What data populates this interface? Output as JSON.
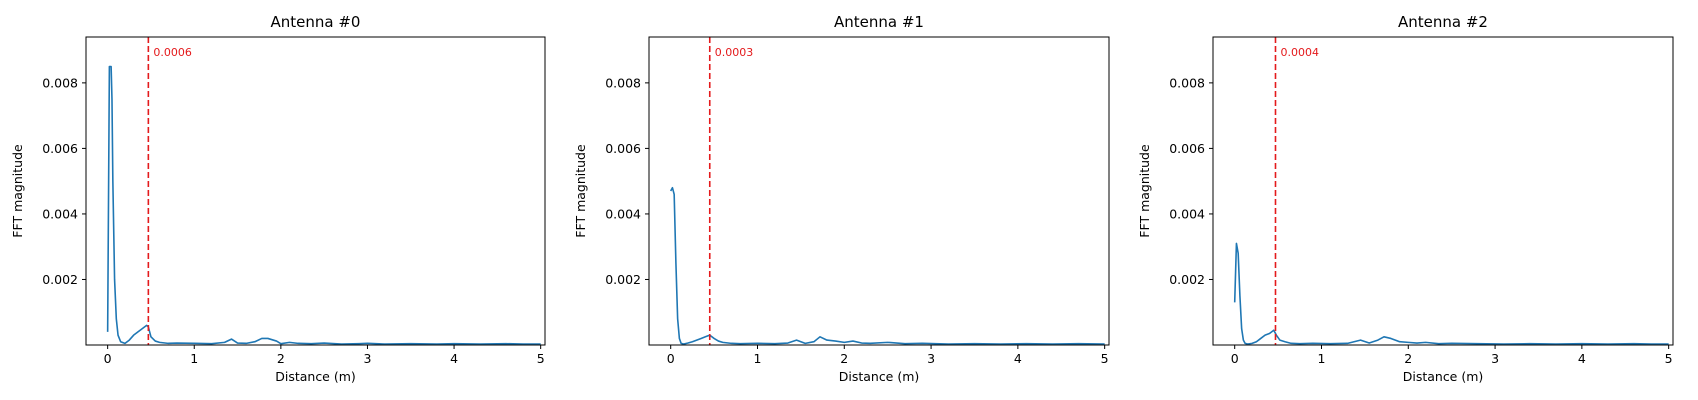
{
  "chart_data": [
    {
      "type": "line",
      "title": "Antenna #0",
      "xlabel": "Distance (m)",
      "ylabel": "FFT magnitude",
      "xlim": [
        -0.25,
        5.05
      ],
      "ylim": [
        0,
        0.0094
      ],
      "xticks": [
        0,
        1,
        2,
        3,
        4,
        5
      ],
      "xtick_labels": [
        "0",
        "1",
        "2",
        "3",
        "4",
        "5"
      ],
      "yticks": [
        0.002,
        0.004,
        0.006,
        0.008
      ],
      "ytick_labels": [
        "0.002",
        "0.004",
        "0.006",
        "0.008"
      ],
      "line_color": "#1f77b4",
      "series": [
        {
          "x": [
            0,
            0.02,
            0.04,
            0.05,
            0.06,
            0.08,
            0.1,
            0.12,
            0.15,
            0.2,
            0.25,
            0.3,
            0.35,
            0.4,
            0.45,
            0.47,
            0.5,
            0.55,
            0.6,
            0.7,
            0.8,
            1.0,
            1.2,
            1.35,
            1.43,
            1.5,
            1.6,
            1.7,
            1.78,
            1.85,
            1.95,
            2.0,
            2.1,
            2.2,
            2.35,
            2.5,
            2.7,
            2.9,
            3.0,
            3.2,
            3.5,
            3.8,
            4.0,
            4.3,
            4.6,
            4.8,
            5.0
          ],
          "y": [
            0.0004,
            0.0085,
            0.0085,
            0.0075,
            0.005,
            0.002,
            0.0008,
            0.0003,
            0.0001,
            5e-05,
            0.00015,
            0.0003,
            0.0004,
            0.0005,
            0.0006,
            0.00055,
            0.00025,
            0.00012,
            8e-05,
            5e-05,
            6e-05,
            5e-05,
            4e-05,
            8e-05,
            0.00018,
            6e-05,
            5e-05,
            0.0001,
            0.0002,
            0.0002,
            0.00012,
            4e-05,
            8e-05,
            5e-05,
            4e-05,
            6e-05,
            3e-05,
            4e-05,
            5e-05,
            3e-05,
            4e-05,
            3e-05,
            4e-05,
            3e-05,
            4e-05,
            3e-05,
            3e-05
          ]
        }
      ],
      "vline": {
        "x": 0.47,
        "color": "#e41a1c",
        "style": "dashed"
      },
      "annotation": {
        "text": "0.0006",
        "color": "#e41a1c"
      }
    },
    {
      "type": "line",
      "title": "Antenna #1",
      "xlabel": "Distance (m)",
      "ylabel": "FFT magnitude",
      "xlim": [
        -0.25,
        5.05
      ],
      "ylim": [
        0,
        0.0094
      ],
      "xticks": [
        0,
        1,
        2,
        3,
        4,
        5
      ],
      "xtick_labels": [
        "0",
        "1",
        "2",
        "3",
        "4",
        "5"
      ],
      "yticks": [
        0.002,
        0.004,
        0.006,
        0.008
      ],
      "ytick_labels": [
        "0.002",
        "0.004",
        "0.006",
        "0.008"
      ],
      "line_color": "#1f77b4",
      "series": [
        {
          "x": [
            0,
            0.02,
            0.04,
            0.06,
            0.08,
            0.1,
            0.12,
            0.15,
            0.2,
            0.25,
            0.3,
            0.35,
            0.4,
            0.45,
            0.5,
            0.55,
            0.6,
            0.7,
            0.8,
            1.0,
            1.2,
            1.35,
            1.45,
            1.55,
            1.65,
            1.72,
            1.8,
            1.9,
            2.0,
            2.1,
            2.2,
            2.3,
            2.5,
            2.7,
            2.9,
            3.2,
            3.5,
            3.8,
            4.1,
            4.4,
            4.7,
            5.0
          ],
          "y": [
            0.0047,
            0.0048,
            0.0046,
            0.0025,
            0.0008,
            0.0002,
            5e-05,
            3e-05,
            6e-05,
            0.0001,
            0.00015,
            0.0002,
            0.00025,
            0.0003,
            0.0002,
            0.00012,
            8e-05,
            5e-05,
            4e-05,
            5e-05,
            4e-05,
            6e-05,
            0.00015,
            5e-05,
            0.0001,
            0.00025,
            0.00015,
            0.00012,
            8e-05,
            0.00012,
            6e-05,
            5e-05,
            8e-05,
            4e-05,
            5e-05,
            3e-05,
            4e-05,
            3e-05,
            4e-05,
            3e-05,
            4e-05,
            3e-05
          ]
        }
      ],
      "vline": {
        "x": 0.45,
        "color": "#e41a1c",
        "style": "dashed"
      },
      "annotation": {
        "text": "0.0003",
        "color": "#e41a1c"
      }
    },
    {
      "type": "line",
      "title": "Antenna #2",
      "xlabel": "Distance (m)",
      "ylabel": "FFT magnitude",
      "xlim": [
        -0.25,
        5.05
      ],
      "ylim": [
        0,
        0.0094
      ],
      "xticks": [
        0,
        1,
        2,
        3,
        4,
        5
      ],
      "xtick_labels": [
        "0",
        "1",
        "2",
        "3",
        "4",
        "5"
      ],
      "yticks": [
        0.002,
        0.004,
        0.006,
        0.008
      ],
      "ytick_labels": [
        "0.002",
        "0.004",
        "0.006",
        "0.008"
      ],
      "line_color": "#1f77b4",
      "series": [
        {
          "x": [
            0,
            0.02,
            0.04,
            0.06,
            0.08,
            0.1,
            0.12,
            0.15,
            0.2,
            0.25,
            0.3,
            0.35,
            0.4,
            0.45,
            0.48,
            0.52,
            0.58,
            0.65,
            0.75,
            0.9,
            1.1,
            1.3,
            1.45,
            1.55,
            1.65,
            1.72,
            1.8,
            1.9,
            2.0,
            2.1,
            2.2,
            2.35,
            2.5,
            2.8,
            3.1,
            3.4,
            3.7,
            4.0,
            4.3,
            4.6,
            4.8,
            5.0
          ],
          "y": [
            0.0013,
            0.0031,
            0.0028,
            0.0015,
            0.0005,
            0.00015,
            5e-05,
            3e-05,
            5e-05,
            0.0001,
            0.0002,
            0.0003,
            0.00035,
            0.00045,
            0.0003,
            0.00015,
            0.0001,
            5e-05,
            4e-05,
            5e-05,
            4e-05,
            5e-05,
            0.00015,
            6e-05,
            0.00015,
            0.00025,
            0.0002,
            0.0001,
            8e-05,
            6e-05,
            8e-05,
            4e-05,
            5e-05,
            4e-05,
            3e-05,
            4e-05,
            3e-05,
            4e-05,
            3e-05,
            4e-05,
            3e-05,
            3e-05
          ]
        }
      ],
      "vline": {
        "x": 0.47,
        "color": "#e41a1c",
        "style": "dashed"
      },
      "annotation": {
        "text": "0.0004",
        "color": "#e41a1c"
      }
    }
  ]
}
